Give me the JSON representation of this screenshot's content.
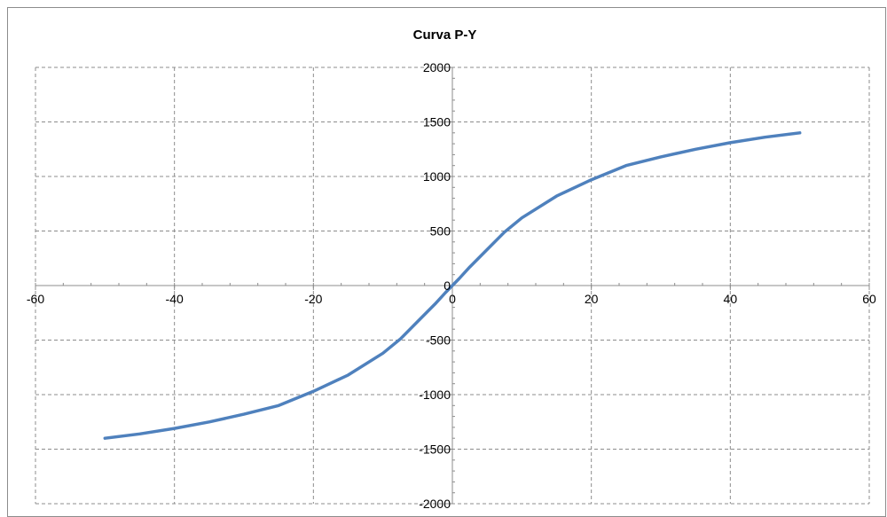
{
  "chart_data": {
    "type": "line",
    "title": "Curva P-Y",
    "xlabel": "",
    "ylabel": "",
    "xlim": [
      -60,
      60
    ],
    "ylim": [
      -2000,
      2000
    ],
    "xticks": [
      -60,
      -40,
      -20,
      0,
      20,
      40,
      60
    ],
    "yticks": [
      -2000,
      -1500,
      -1000,
      -500,
      0,
      500,
      1000,
      1500,
      2000
    ],
    "grid": true,
    "grid_style": "dashed",
    "legend": "none",
    "series": [
      {
        "color": "#4f81bd",
        "x": [
          -50,
          -45,
          -40,
          -35,
          -30,
          -25,
          -20,
          -15,
          -10,
          -7.5,
          -5,
          -2.5,
          -1,
          0,
          1,
          2.5,
          5,
          7.5,
          10,
          15,
          20,
          25,
          30,
          35,
          40,
          45,
          50
        ],
        "y": [
          -1400,
          -1360,
          -1310,
          -1250,
          -1180,
          -1100,
          -970,
          -820,
          -620,
          -490,
          -330,
          -170,
          -65,
          0,
          65,
          170,
          330,
          490,
          620,
          820,
          970,
          1100,
          1180,
          1250,
          1310,
          1360,
          1400
        ]
      }
    ]
  }
}
